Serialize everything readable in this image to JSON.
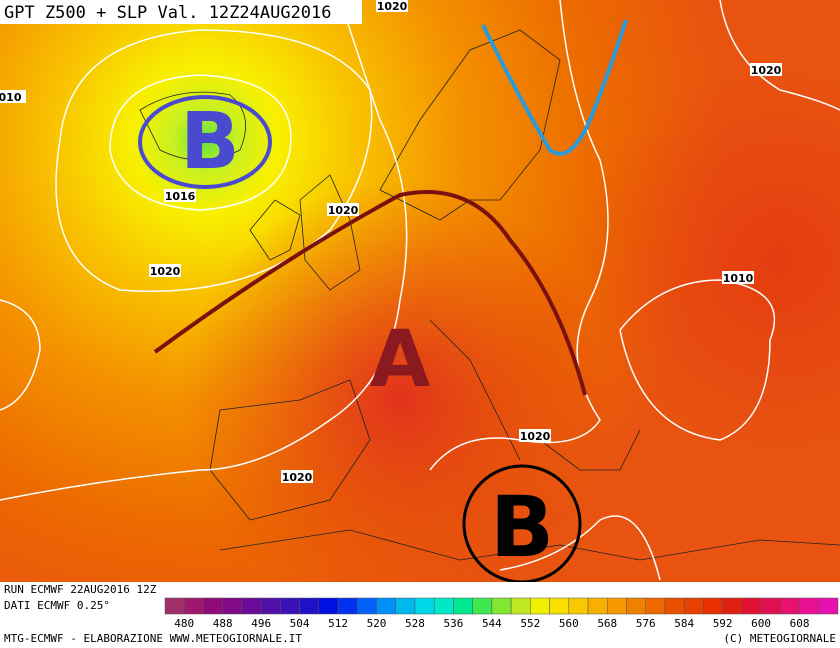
{
  "title": "GPT Z500 + SLP Val. 12Z24AUG2016",
  "isobar_labels": [
    "1020",
    "010",
    "1020",
    "1016",
    "1020",
    "1020",
    "1010",
    "1020",
    "1020"
  ],
  "pressure_centers": [
    "B",
    "A",
    "B"
  ],
  "footer": {
    "run": "RUN ECMWF 22AUG2016 12Z",
    "data_source": "DATI ECMWF 0.25°",
    "credit": "MTG-ECMWF - ELABORAZIONE WWW.METEOGIORNALE.IT",
    "copyright": "(C) METEOGIORNALE"
  },
  "legend": {
    "colors": [
      "#a0306a",
      "#a0186e",
      "#900a78",
      "#800a88",
      "#6a0a98",
      "#5010a8",
      "#3a10b8",
      "#2010c8",
      "#0010e0",
      "#0030f0",
      "#0060f8",
      "#0090f8",
      "#00b8f0",
      "#00d8e8",
      "#00e8c8",
      "#00e890",
      "#40e850",
      "#80e830",
      "#c0e820",
      "#f0f000",
      "#f8e000",
      "#f8c800",
      "#f8b000",
      "#f89800",
      "#f08000",
      "#f06800",
      "#e85000",
      "#e84000",
      "#e83000",
      "#e02010",
      "#e01030",
      "#e01050",
      "#e81070",
      "#e81090",
      "#e810b0"
    ],
    "labels": [
      480,
      488,
      496,
      504,
      512,
      520,
      528,
      536,
      544,
      552,
      560,
      568,
      576,
      584,
      592,
      600,
      608
    ]
  }
}
